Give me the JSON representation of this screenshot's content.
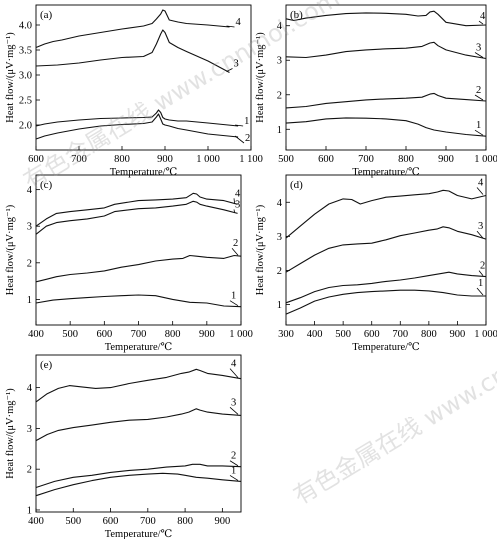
{
  "watermarks": [
    "有色金属在线 www.cnnmol.com",
    "有色金属在线 www.cnnmol.com"
  ],
  "chart_data": [
    {
      "panel": "(a)",
      "type": "line",
      "xlabel": "Temperature/℃",
      "ylabel": "Heat flow/(μV·mg⁻¹)",
      "xlim": [
        600,
        1100
      ],
      "ylim": [
        1.5,
        4.4
      ],
      "xticks": [
        600,
        700,
        800,
        900,
        1000,
        1100
      ],
      "yticks": [
        2.0,
        2.5,
        3.0,
        3.5,
        4.0
      ],
      "xtick_labels": [
        "600",
        "700",
        "800",
        "900",
        "1 000",
        "1 100"
      ],
      "ytick_labels": [
        "2.0",
        "2.5",
        "3.0",
        "3.5",
        "4.0"
      ],
      "series": [
        {
          "name": "4",
          "x": [
            600,
            620,
            640,
            660,
            700,
            750,
            800,
            850,
            870,
            880,
            890,
            895,
            900,
            910,
            930,
            950,
            1000,
            1050
          ],
          "y": [
            3.55,
            3.62,
            3.67,
            3.7,
            3.78,
            3.85,
            3.92,
            3.98,
            4.03,
            4.12,
            4.22,
            4.3,
            4.28,
            4.1,
            4.06,
            4.03,
            4.0,
            3.96
          ]
        },
        {
          "name": "3",
          "x": [
            600,
            650,
            700,
            750,
            800,
            850,
            870,
            880,
            890,
            895,
            900,
            910,
            930,
            950,
            1000,
            1050
          ],
          "y": [
            3.18,
            3.2,
            3.24,
            3.3,
            3.35,
            3.37,
            3.45,
            3.62,
            3.82,
            3.9,
            3.85,
            3.65,
            3.55,
            3.47,
            3.28,
            3.05
          ]
        },
        {
          "name": "1",
          "x": [
            600,
            620,
            650,
            700,
            750,
            800,
            850,
            870,
            880,
            885,
            890,
            895,
            900,
            910,
            930,
            950,
            1000,
            1070
          ],
          "y": [
            1.98,
            2.02,
            2.06,
            2.1,
            2.13,
            2.14,
            2.15,
            2.16,
            2.24,
            2.3,
            2.25,
            2.15,
            2.12,
            2.1,
            2.08,
            2.08,
            2.04,
            1.98
          ]
        },
        {
          "name": "2",
          "x": [
            600,
            620,
            650,
            700,
            750,
            800,
            850,
            870,
            880,
            885,
            890,
            895,
            900,
            910,
            930,
            950,
            1000,
            1070
          ],
          "y": [
            1.72,
            1.78,
            1.84,
            1.92,
            1.98,
            2.01,
            2.03,
            2.06,
            2.16,
            2.22,
            2.12,
            2.02,
            2.0,
            1.98,
            1.93,
            1.9,
            1.82,
            1.76
          ]
        }
      ]
    },
    {
      "panel": "(b)",
      "type": "line",
      "xlabel": "Temperature/℃",
      "ylabel": "Heat flow/(μV·mg⁻¹)",
      "xlim": [
        500,
        1000
      ],
      "ylim": [
        0.4,
        4.6
      ],
      "xticks": [
        500,
        600,
        700,
        800,
        900,
        1000
      ],
      "yticks": [
        1,
        2,
        3,
        4
      ],
      "xtick_labels": [
        "500",
        "600",
        "700",
        "800",
        "900",
        "1 000"
      ],
      "ytick_labels": [
        "1",
        "2",
        "3",
        "4"
      ],
      "series": [
        {
          "name": "4",
          "x": [
            500,
            520,
            550,
            600,
            650,
            700,
            750,
            800,
            830,
            850,
            860,
            870,
            880,
            900,
            950,
            1000
          ],
          "y": [
            4.2,
            4.15,
            4.22,
            4.3,
            4.35,
            4.37,
            4.36,
            4.33,
            4.28,
            4.3,
            4.4,
            4.42,
            4.33,
            4.1,
            4.0,
            4.02
          ]
        },
        {
          "name": "3",
          "x": [
            500,
            550,
            600,
            650,
            700,
            750,
            800,
            840,
            860,
            870,
            880,
            900,
            950,
            1000
          ],
          "y": [
            3.1,
            3.08,
            3.15,
            3.25,
            3.3,
            3.33,
            3.35,
            3.4,
            3.5,
            3.52,
            3.42,
            3.3,
            3.15,
            3.05
          ]
        },
        {
          "name": "2",
          "x": [
            500,
            550,
            600,
            650,
            700,
            750,
            800,
            840,
            860,
            870,
            880,
            900,
            950,
            1000
          ],
          "y": [
            1.62,
            1.66,
            1.75,
            1.8,
            1.85,
            1.88,
            1.9,
            1.93,
            2.02,
            2.04,
            1.98,
            1.9,
            1.86,
            1.82
          ]
        },
        {
          "name": "1",
          "x": [
            500,
            550,
            600,
            650,
            700,
            750,
            800,
            830,
            850,
            870,
            900,
            950,
            1000
          ],
          "y": [
            1.18,
            1.22,
            1.3,
            1.33,
            1.32,
            1.3,
            1.25,
            1.15,
            1.05,
            0.98,
            0.92,
            0.85,
            0.8
          ]
        }
      ]
    },
    {
      "panel": "(c)",
      "type": "line",
      "xlabel": "Temperature/℃",
      "ylabel": "Heat flow/(μV·mg⁻¹)",
      "xlim": [
        400,
        1000
      ],
      "ylim": [
        0.3,
        4.4
      ],
      "xticks": [
        400,
        500,
        600,
        700,
        800,
        900,
        1000
      ],
      "yticks": [
        1,
        2,
        3,
        4
      ],
      "xtick_labels": [
        "400",
        "500",
        "600",
        "700",
        "800",
        "900",
        "1 000"
      ],
      "ytick_labels": [
        "1",
        "2",
        "3",
        "4"
      ],
      "series": [
        {
          "name": "4",
          "x": [
            400,
            430,
            460,
            500,
            550,
            600,
            630,
            700,
            750,
            800,
            840,
            860,
            870,
            880,
            900,
            950,
            990
          ],
          "y": [
            3.0,
            3.2,
            3.35,
            3.4,
            3.45,
            3.5,
            3.6,
            3.7,
            3.72,
            3.74,
            3.78,
            3.9,
            3.88,
            3.8,
            3.74,
            3.7,
            3.6
          ]
        },
        {
          "name": "3",
          "x": [
            400,
            430,
            460,
            500,
            550,
            600,
            630,
            700,
            750,
            800,
            840,
            860,
            870,
            880,
            900,
            950,
            990
          ],
          "y": [
            2.78,
            3.0,
            3.1,
            3.15,
            3.2,
            3.28,
            3.4,
            3.48,
            3.5,
            3.55,
            3.6,
            3.68,
            3.66,
            3.6,
            3.55,
            3.45,
            3.35
          ]
        },
        {
          "name": "2",
          "x": [
            400,
            430,
            460,
            500,
            550,
            600,
            650,
            700,
            750,
            800,
            830,
            850,
            870,
            900,
            950,
            980,
            1000
          ],
          "y": [
            1.48,
            1.55,
            1.62,
            1.68,
            1.72,
            1.78,
            1.88,
            1.95,
            2.05,
            2.1,
            2.12,
            2.2,
            2.18,
            2.15,
            2.12,
            2.2,
            2.18
          ]
        },
        {
          "name": "1",
          "x": [
            400,
            450,
            500,
            550,
            600,
            650,
            700,
            750,
            800,
            850,
            900,
            950,
            1000
          ],
          "y": [
            0.9,
            0.98,
            1.02,
            1.05,
            1.08,
            1.1,
            1.12,
            1.1,
            1.0,
            0.92,
            0.9,
            0.82,
            0.8
          ]
        }
      ]
    },
    {
      "panel": "(d)",
      "type": "line",
      "xlabel": "Temperature/℃",
      "ylabel": "Heat flow/(μV·mg⁻¹)",
      "xlim": [
        300,
        1000
      ],
      "ylim": [
        0.4,
        4.8
      ],
      "xticks": [
        300,
        400,
        500,
        600,
        700,
        800,
        900,
        1000
      ],
      "yticks": [
        1,
        2,
        3,
        4
      ],
      "xtick_labels": [
        "300",
        "400",
        "500",
        "600",
        "700",
        "800",
        "900",
        "1 000"
      ],
      "ytick_labels": [
        "1",
        "2",
        "3",
        "4"
      ],
      "series": [
        {
          "name": "4",
          "x": [
            300,
            350,
            400,
            450,
            500,
            530,
            560,
            600,
            650,
            700,
            750,
            800,
            830,
            850,
            870,
            900,
            950,
            1000
          ],
          "y": [
            2.95,
            3.3,
            3.65,
            3.95,
            4.1,
            4.08,
            3.95,
            4.05,
            4.15,
            4.18,
            4.22,
            4.25,
            4.3,
            4.35,
            4.33,
            4.2,
            4.1,
            4.2
          ]
        },
        {
          "name": "3",
          "x": [
            300,
            350,
            400,
            450,
            500,
            550,
            600,
            650,
            700,
            750,
            800,
            830,
            850,
            870,
            900,
            950,
            1000
          ],
          "y": [
            1.95,
            2.2,
            2.45,
            2.65,
            2.75,
            2.78,
            2.8,
            2.9,
            3.02,
            3.1,
            3.18,
            3.22,
            3.28,
            3.25,
            3.15,
            3.05,
            2.92
          ]
        },
        {
          "name": "2",
          "x": [
            300,
            350,
            400,
            450,
            500,
            550,
            600,
            650,
            700,
            750,
            800,
            850,
            870,
            900,
            950,
            1000
          ],
          "y": [
            1.05,
            1.2,
            1.38,
            1.5,
            1.56,
            1.58,
            1.62,
            1.68,
            1.72,
            1.78,
            1.85,
            1.92,
            1.95,
            1.9,
            1.85,
            1.82
          ]
        },
        {
          "name": "1",
          "x": [
            300,
            350,
            400,
            450,
            500,
            550,
            600,
            650,
            700,
            750,
            800,
            850,
            900,
            950,
            1000
          ],
          "y": [
            0.72,
            0.9,
            1.1,
            1.22,
            1.3,
            1.35,
            1.38,
            1.4,
            1.42,
            1.42,
            1.4,
            1.35,
            1.28,
            1.25,
            1.25
          ]
        }
      ]
    },
    {
      "panel": "(e)",
      "type": "line",
      "xlabel": "Temperature/℃",
      "ylabel": "Heat flow/(μV·mg⁻¹)",
      "xlim": [
        400,
        950
      ],
      "ylim": [
        0.95,
        4.8
      ],
      "xticks": [
        400,
        500,
        600,
        700,
        800,
        900
      ],
      "yticks": [
        1,
        2,
        3,
        4
      ],
      "xtick_labels": [
        "400",
        "500",
        "600",
        "700",
        "800",
        "900"
      ],
      "ytick_labels": [
        "1",
        "2",
        "3",
        "4"
      ],
      "series": [
        {
          "name": "4",
          "x": [
            400,
            430,
            460,
            490,
            520,
            560,
            600,
            650,
            700,
            750,
            790,
            810,
            830,
            840,
            860,
            900,
            950
          ],
          "y": [
            3.65,
            3.85,
            3.98,
            4.05,
            4.02,
            3.98,
            4.0,
            4.1,
            4.18,
            4.25,
            4.35,
            4.38,
            4.45,
            4.42,
            4.35,
            4.3,
            4.22
          ]
        },
        {
          "name": "3",
          "x": [
            400,
            430,
            460,
            500,
            550,
            600,
            650,
            700,
            750,
            790,
            810,
            830,
            840,
            860,
            900,
            950
          ],
          "y": [
            2.7,
            2.85,
            2.95,
            3.02,
            3.08,
            3.15,
            3.2,
            3.22,
            3.28,
            3.35,
            3.4,
            3.48,
            3.45,
            3.4,
            3.35,
            3.32
          ]
        },
        {
          "name": "2",
          "x": [
            400,
            450,
            500,
            550,
            600,
            650,
            700,
            750,
            800,
            820,
            840,
            860,
            900,
            950
          ],
          "y": [
            1.55,
            1.7,
            1.8,
            1.85,
            1.92,
            1.97,
            2.0,
            2.05,
            2.08,
            2.12,
            2.12,
            2.08,
            2.08,
            2.06
          ]
        },
        {
          "name": "1",
          "x": [
            400,
            450,
            500,
            550,
            600,
            650,
            700,
            740,
            780,
            800,
            830,
            860,
            900,
            950
          ],
          "y": [
            1.35,
            1.5,
            1.62,
            1.72,
            1.8,
            1.85,
            1.88,
            1.9,
            1.88,
            1.85,
            1.8,
            1.78,
            1.74,
            1.7
          ]
        }
      ]
    }
  ]
}
